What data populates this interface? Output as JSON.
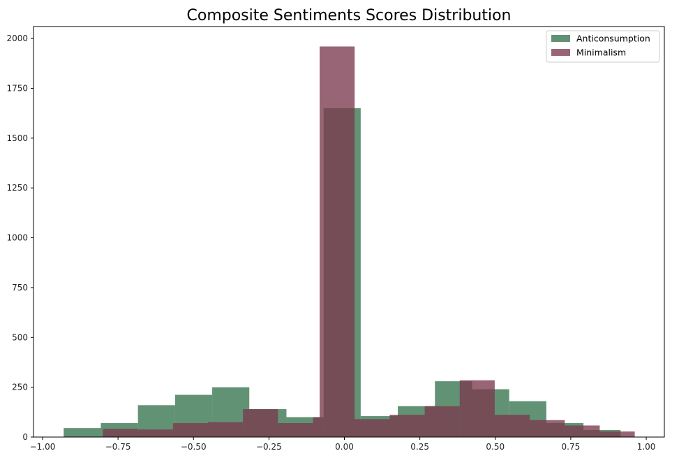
{
  "chart_data": {
    "type": "bar",
    "title": "Composite Sentiments Scores Distribution",
    "xlabel": "",
    "ylabel": "",
    "xlim": [
      -1.03,
      1.06
    ],
    "ylim": [
      0,
      2060
    ],
    "xticks": [
      -1.0,
      -0.75,
      -0.5,
      -0.25,
      0.0,
      0.25,
      0.5,
      0.75,
      1.0
    ],
    "xtick_labels": [
      "−1.00",
      "−0.75",
      "−0.50",
      "−0.25",
      "0.00",
      "0.25",
      "0.50",
      "0.75",
      "1.00"
    ],
    "yticks": [
      0,
      250,
      500,
      750,
      1000,
      1250,
      1500,
      1750,
      2000
    ],
    "ytick_labels": [
      "0",
      "250",
      "500",
      "750",
      "1000",
      "1250",
      "1500",
      "1750",
      "2000"
    ],
    "grid": false,
    "legend_position": "top-right",
    "series": [
      {
        "name": "Anticonsumption",
        "color": "#2e6e45",
        "opacity": 0.75,
        "bins": [
          {
            "x0": -0.93,
            "x1": -0.807,
            "value": 45
          },
          {
            "x0": -0.807,
            "x1": -0.684,
            "value": 70
          },
          {
            "x0": -0.684,
            "x1": -0.561,
            "value": 160
          },
          {
            "x0": -0.561,
            "x1": -0.438,
            "value": 212
          },
          {
            "x0": -0.438,
            "x1": -0.315,
            "value": 250
          },
          {
            "x0": -0.315,
            "x1": -0.192,
            "value": 140
          },
          {
            "x0": -0.192,
            "x1": -0.069,
            "value": 100
          },
          {
            "x0": -0.069,
            "x1": 0.054,
            "value": 1650
          },
          {
            "x0": 0.054,
            "x1": 0.177,
            "value": 105
          },
          {
            "x0": 0.177,
            "x1": 0.3,
            "value": 155
          },
          {
            "x0": 0.3,
            "x1": 0.423,
            "value": 280
          },
          {
            "x0": 0.423,
            "x1": 0.546,
            "value": 240
          },
          {
            "x0": 0.546,
            "x1": 0.669,
            "value": 180
          },
          {
            "x0": 0.669,
            "x1": 0.792,
            "value": 70
          },
          {
            "x0": 0.792,
            "x1": 0.915,
            "value": 35
          }
        ]
      },
      {
        "name": "Minimalism",
        "color": "#7a3a4e",
        "opacity": 0.78,
        "bins": [
          {
            "x0": -0.8,
            "x1": -0.684,
            "value": 42
          },
          {
            "x0": -0.684,
            "x1": -0.568,
            "value": 38
          },
          {
            "x0": -0.568,
            "x1": -0.452,
            "value": 70
          },
          {
            "x0": -0.452,
            "x1": -0.336,
            "value": 75
          },
          {
            "x0": -0.336,
            "x1": -0.22,
            "value": 140
          },
          {
            "x0": -0.22,
            "x1": -0.104,
            "value": 70
          },
          {
            "x0": -0.104,
            "x1": -0.082,
            "value": 100
          },
          {
            "x0": -0.082,
            "x1": 0.034,
            "value": 1960
          },
          {
            "x0": 0.034,
            "x1": 0.15,
            "value": 90
          },
          {
            "x0": 0.15,
            "x1": 0.266,
            "value": 112
          },
          {
            "x0": 0.266,
            "x1": 0.382,
            "value": 155
          },
          {
            "x0": 0.382,
            "x1": 0.498,
            "value": 285
          },
          {
            "x0": 0.498,
            "x1": 0.614,
            "value": 112
          },
          {
            "x0": 0.614,
            "x1": 0.73,
            "value": 85
          },
          {
            "x0": 0.73,
            "x1": 0.846,
            "value": 58
          },
          {
            "x0": 0.846,
            "x1": 0.962,
            "value": 28
          }
        ]
      }
    ]
  }
}
